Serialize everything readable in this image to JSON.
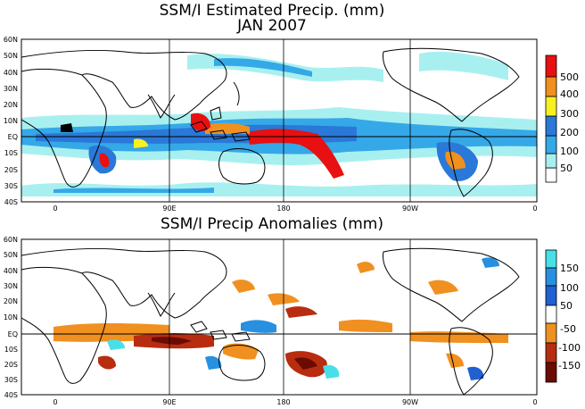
{
  "top_panel": {
    "title_line1": "SSM/I Estimated Precip. (mm)",
    "title_line2": "JAN 2007",
    "colorbar": {
      "levels": [
        {
          "label": "",
          "color": "#ffffff"
        },
        {
          "label": "50",
          "color": "#a8f0f0"
        },
        {
          "label": "100",
          "color": "#35a8e8"
        },
        {
          "label": "200",
          "color": "#2a78d8"
        },
        {
          "label": "300",
          "color": "#f8f020"
        },
        {
          "label": "400",
          "color": "#f0901e"
        },
        {
          "label": "500",
          "color": "#e81010"
        }
      ]
    }
  },
  "bottom_panel": {
    "title": "SSM/I Precip Anomalies (mm)",
    "colorbar": {
      "levels": [
        {
          "label": "150",
          "color": "#48e0e8"
        },
        {
          "label": "100",
          "color": "#2890e0"
        },
        {
          "label": "50",
          "color": "#2060d0"
        },
        {
          "label": "",
          "color": "#ffffff"
        },
        {
          "label": "-50",
          "color": "#f09020"
        },
        {
          "label": "-100",
          "color": "#b82c10"
        },
        {
          "label": "-150",
          "color": "#6a0c04"
        }
      ]
    }
  },
  "axes": {
    "lat_ticks": [
      "60N",
      "50N",
      "40N",
      "30N",
      "20N",
      "10N",
      "EQ",
      "10S",
      "20S",
      "30S",
      "40S"
    ],
    "lon_ticks": [
      "0",
      "90E",
      "180",
      "90W",
      "0"
    ]
  },
  "colors": {
    "land_outline": "#000000",
    "background": "#ffffff"
  }
}
